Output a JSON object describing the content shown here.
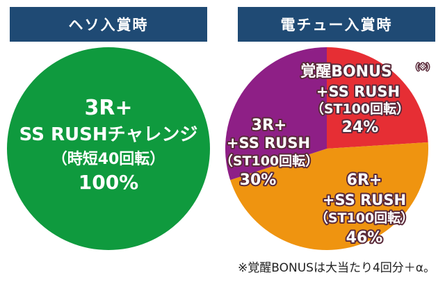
{
  "headers": {
    "left": "ヘソ入賞時",
    "right": "電チュー入賞時"
  },
  "colors": {
    "header_bg": "#1f4a74",
    "green": "#0f9a3e",
    "purple": "#8e1f86",
    "red": "#e62e34",
    "orange": "#ef9410"
  },
  "chart_data": [
    {
      "type": "pie",
      "title": "ヘソ入賞時",
      "slices": [
        {
          "value": 100,
          "color": "#0f9a3e",
          "label_lines": [
            "3R+",
            "SS RUSHチャレンジ",
            "（時短40回転）",
            "100%"
          ]
        }
      ]
    },
    {
      "type": "pie",
      "title": "電チュー入賞時",
      "slices": [
        {
          "value": 24,
          "color": "#e62e34",
          "label_lines": [
            "覚醒BONUS",
            "+SS RUSH",
            "（ST100回転）",
            "24%"
          ],
          "label_superscript": "（※）"
        },
        {
          "value": 46,
          "color": "#ef9410",
          "label_lines": [
            "6R+",
            "+SS RUSH",
            "（ST100回転）",
            "46%"
          ]
        },
        {
          "value": 30,
          "color": "#8e1f86",
          "label_lines": [
            "3R+",
            "+SS RUSH",
            "（ST100回転）",
            "30%"
          ]
        }
      ]
    }
  ],
  "footnote": "※覚醒BONUSは大当たり4回分＋α。"
}
